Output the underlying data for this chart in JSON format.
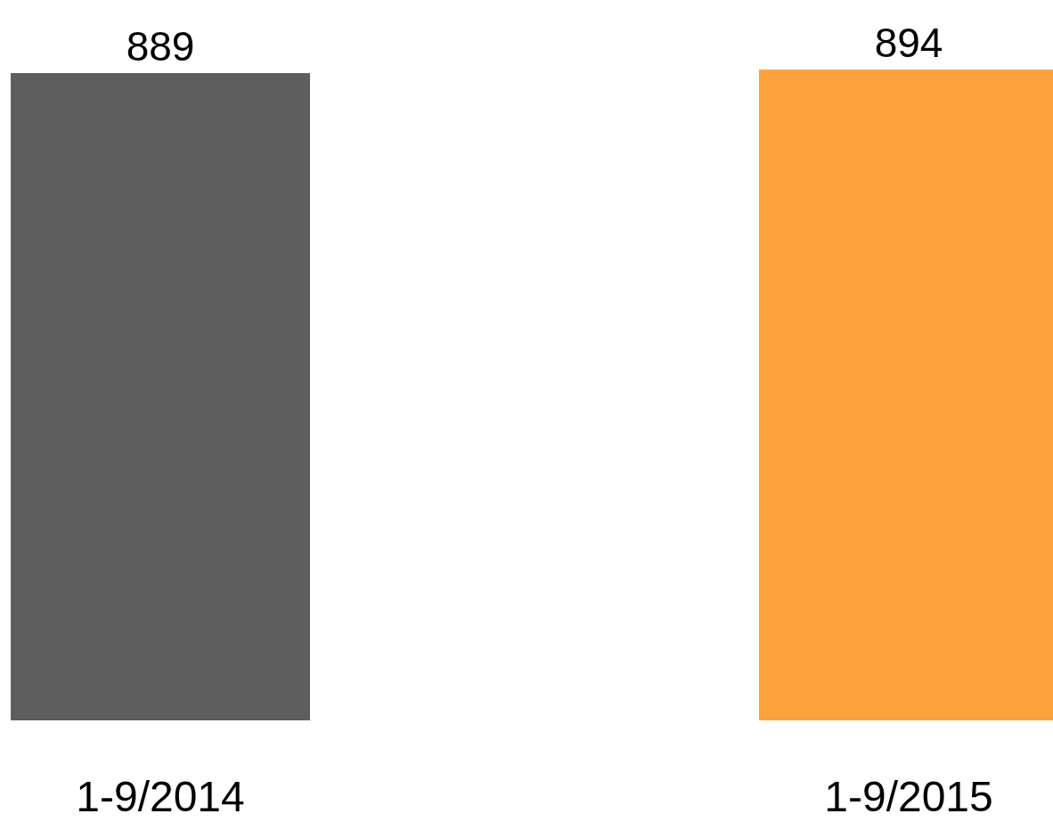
{
  "chart_data": {
    "type": "bar",
    "categories": [
      "1-9/2014",
      "1-9/2015"
    ],
    "values": [
      889,
      894
    ],
    "colors": [
      "#5e5e5e",
      "#ffa23c"
    ],
    "data_labels": true
  }
}
